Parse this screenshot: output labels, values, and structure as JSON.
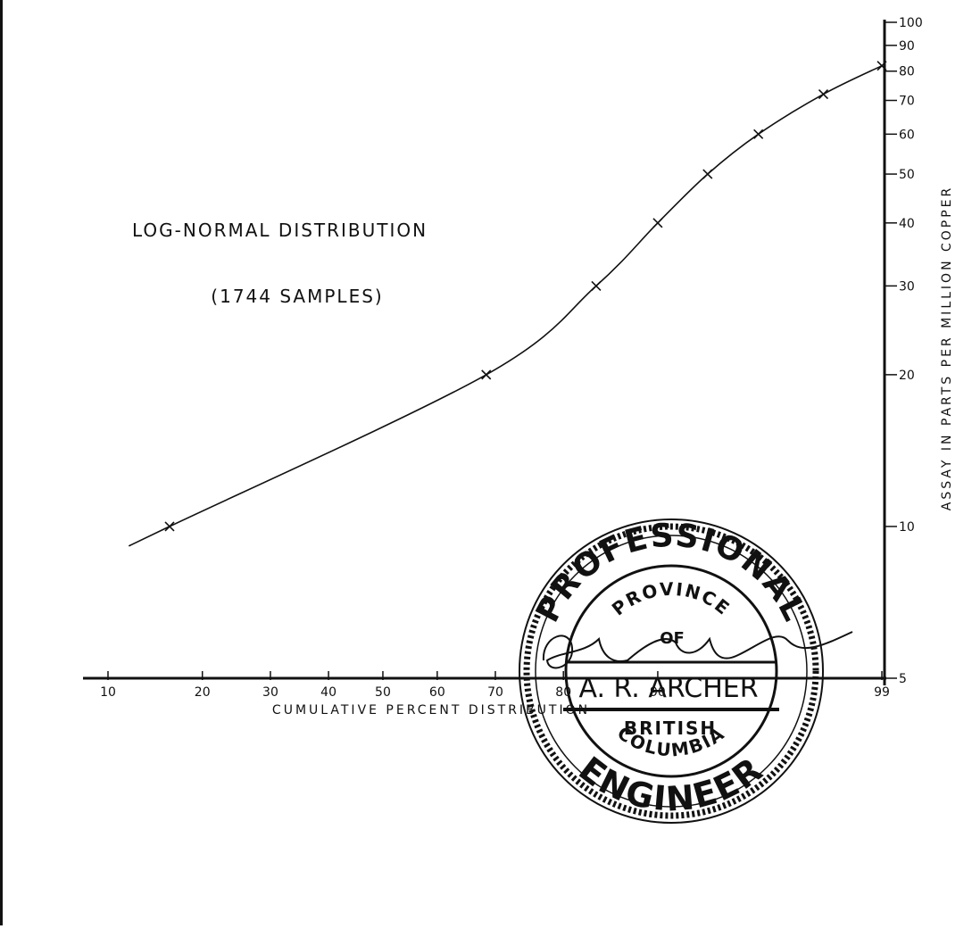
{
  "chart_data": {
    "type": "line",
    "title": "LOG-NORMAL DISTRIBUTION",
    "subtitle": "(1744 SAMPLES)",
    "xlabel": "CUMULATIVE PERCENT DISTRIBUTION",
    "ylabel": "ASSAY IN PARTS PER MILLION COPPER",
    "x_scale": "probability",
    "y_scale": "log",
    "xlim": [
      10,
      99
    ],
    "ylim": [
      5,
      100
    ],
    "x_ticks": [
      10,
      20,
      30,
      40,
      50,
      60,
      70,
      80,
      90,
      99
    ],
    "x_tick_labels": [
      "10",
      "20",
      "30",
      "40",
      "50",
      "60",
      "70",
      "80",
      "90",
      "99"
    ],
    "y_ticks": [
      5,
      10,
      20,
      30,
      40,
      50,
      60,
      70,
      80,
      90,
      100
    ],
    "y_tick_labels": [
      "5",
      "10",
      "20",
      "30",
      "40",
      "50",
      "60",
      "70",
      "80",
      "90",
      "100"
    ],
    "grid": false,
    "series": [
      {
        "marker": "x",
        "color": "#111111",
        "x": [
          16,
          68.5,
          84,
          90,
          93.5,
          96,
          98,
          99
        ],
        "y": [
          10,
          20,
          30,
          40,
          50,
          60,
          72,
          82
        ]
      }
    ]
  },
  "seal": {
    "top_text": "PROFESSIONAL",
    "bottom_text": "ENGINEER",
    "province_text": "PROVINCE",
    "of_text": "OF",
    "name": "A. R. ARCHER",
    "british_text": "BRITISH",
    "columbia_text": "COLUMBIA"
  }
}
